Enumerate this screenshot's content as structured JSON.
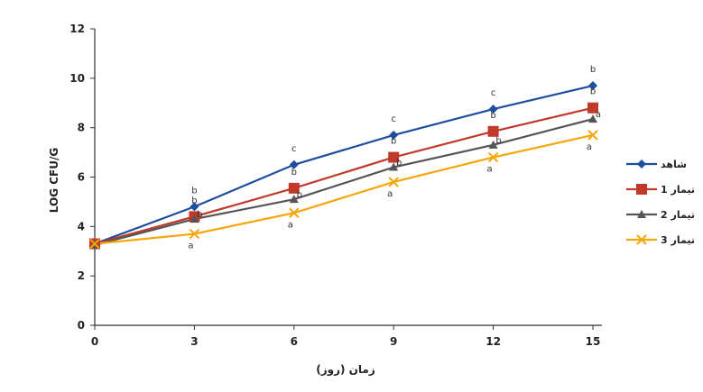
{
  "chart_data": {
    "type": "line",
    "title": "",
    "xlabel": "زمان (روز)",
    "ylabel": "LOG CFU/G",
    "x": [
      0,
      3,
      6,
      9,
      12,
      15
    ],
    "x_tick_labels": [
      "0",
      "3",
      "6",
      "9",
      "12",
      "15"
    ],
    "y_tick_labels": [
      "0",
      "2",
      "4",
      "6",
      "8",
      "10",
      "12"
    ],
    "ylim": [
      0,
      12
    ],
    "xlim": [
      0,
      15
    ],
    "grid": false,
    "legend_position": "right",
    "series": [
      {
        "name": "شاهد",
        "color": "#1f4e9e",
        "marker": "diamond",
        "values": [
          3.3,
          4.8,
          6.5,
          7.7,
          8.75,
          9.7
        ],
        "labels": [
          "",
          "b",
          "c",
          "c",
          "c",
          "b"
        ]
      },
      {
        "name": "تیمار 1",
        "color": "#c0392b",
        "marker": "square",
        "values": [
          3.3,
          4.4,
          5.55,
          6.8,
          7.85,
          8.8
        ],
        "labels": [
          "",
          "b",
          "b",
          "b",
          "b",
          "b"
        ]
      },
      {
        "name": "تیمار 2",
        "color": "#555555",
        "marker": "triangle",
        "values": [
          3.25,
          4.3,
          5.1,
          6.4,
          7.3,
          8.35
        ],
        "labels": [
          "",
          "b",
          "b",
          "b",
          "b",
          "a"
        ]
      },
      {
        "name": "تیمار 3",
        "color": "#f5a70a",
        "marker": "x",
        "values": [
          3.3,
          3.7,
          4.55,
          5.8,
          6.8,
          7.7
        ],
        "labels": [
          "",
          "a",
          "a",
          "a",
          "a",
          "a"
        ]
      }
    ]
  }
}
